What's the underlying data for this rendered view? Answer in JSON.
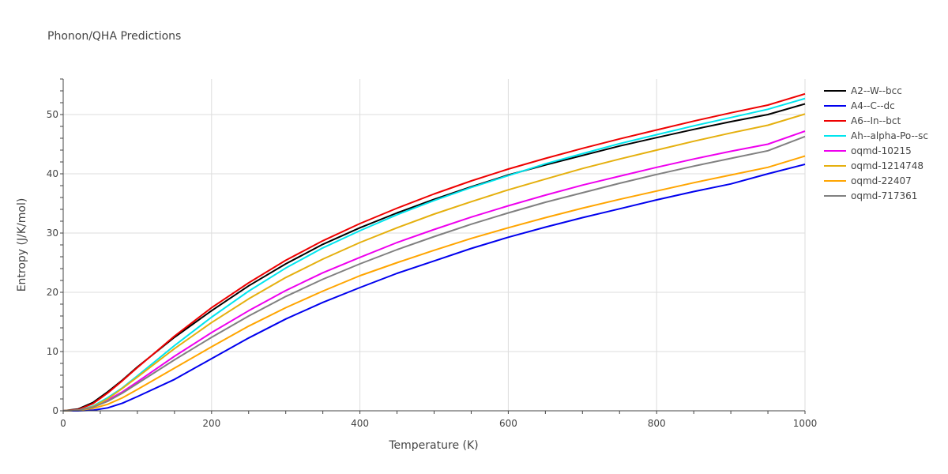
{
  "chart_data": {
    "type": "line",
    "title": "Phonon/QHA Predictions",
    "xlabel": "Temperature (K)",
    "ylabel": "Entropy (J/K/mol)",
    "xlim": [
      0,
      1000
    ],
    "ylim": [
      0,
      56
    ],
    "xticks": [
      0,
      200,
      400,
      600,
      800,
      1000
    ],
    "yticks": [
      0,
      10,
      20,
      30,
      40,
      50
    ],
    "x": [
      0,
      20,
      40,
      60,
      80,
      100,
      150,
      200,
      250,
      300,
      350,
      400,
      450,
      500,
      550,
      600,
      650,
      700,
      750,
      800,
      850,
      900,
      950,
      1000
    ],
    "series": [
      {
        "name": "A2--W--bcc",
        "color": "#000000",
        "values": [
          0,
          0.3,
          1.4,
          3.2,
          5.2,
          7.4,
          12.4,
          16.9,
          21.1,
          24.8,
          28.1,
          30.9,
          33.4,
          35.7,
          37.8,
          39.8,
          41.5,
          43.1,
          44.7,
          46.1,
          47.5,
          48.8,
          50.0,
          51.8
        ]
      },
      {
        "name": "A4--C--dc",
        "color": "#0000ee",
        "values": [
          0,
          0.0,
          0.1,
          0.5,
          1.3,
          2.4,
          5.3,
          8.8,
          12.3,
          15.5,
          18.3,
          20.8,
          23.2,
          25.3,
          27.4,
          29.3,
          31.0,
          32.6,
          34.1,
          35.6,
          37.0,
          38.3,
          40.0,
          41.6
        ]
      },
      {
        "name": "A6--In--bct",
        "color": "#ee0000",
        "values": [
          0,
          0.2,
          1.2,
          3.0,
          5.1,
          7.3,
          12.6,
          17.4,
          21.6,
          25.4,
          28.7,
          31.6,
          34.2,
          36.6,
          38.8,
          40.8,
          42.6,
          44.3,
          45.9,
          47.4,
          48.9,
          50.3,
          51.6,
          53.5
        ]
      },
      {
        "name": "Ah--alpha-Po--sc",
        "color": "#00e5ee",
        "values": [
          0,
          0.1,
          0.8,
          2.2,
          3.9,
          5.9,
          11.0,
          15.8,
          20.2,
          24.1,
          27.5,
          30.4,
          33.1,
          35.5,
          37.7,
          39.7,
          41.7,
          43.4,
          45.1,
          46.6,
          48.1,
          49.5,
          50.9,
          52.7
        ]
      },
      {
        "name": "oqmd-10215",
        "color": "#ee00ee",
        "values": [
          0,
          0.1,
          0.7,
          1.8,
          3.2,
          4.9,
          9.2,
          13.2,
          16.9,
          20.3,
          23.3,
          25.9,
          28.4,
          30.6,
          32.7,
          34.6,
          36.4,
          38.1,
          39.6,
          41.1,
          42.5,
          43.8,
          45.0,
          47.2
        ]
      },
      {
        "name": "oqmd-1214748",
        "color": "#e5b00e",
        "values": [
          0,
          0.1,
          0.7,
          2.0,
          3.8,
          5.7,
          10.5,
          14.9,
          18.9,
          22.5,
          25.6,
          28.4,
          30.9,
          33.2,
          35.3,
          37.3,
          39.1,
          40.9,
          42.5,
          44.0,
          45.5,
          46.9,
          48.2,
          50.1
        ]
      },
      {
        "name": "oqmd-22407",
        "color": "#ffa500",
        "values": [
          0,
          0.1,
          0.4,
          1.1,
          2.2,
          3.6,
          7.2,
          10.8,
          14.3,
          17.4,
          20.2,
          22.8,
          25.0,
          27.1,
          29.1,
          30.9,
          32.6,
          34.2,
          35.7,
          37.1,
          38.5,
          39.8,
          41.1,
          43.0
        ]
      },
      {
        "name": "oqmd-717361",
        "color": "#808080",
        "values": [
          0,
          0.1,
          0.6,
          1.6,
          3.0,
          4.6,
          8.6,
          12.4,
          16.0,
          19.3,
          22.2,
          24.8,
          27.2,
          29.4,
          31.5,
          33.4,
          35.2,
          36.8,
          38.4,
          39.9,
          41.3,
          42.6,
          43.9,
          46.3
        ]
      }
    ],
    "legend_position": "right"
  }
}
